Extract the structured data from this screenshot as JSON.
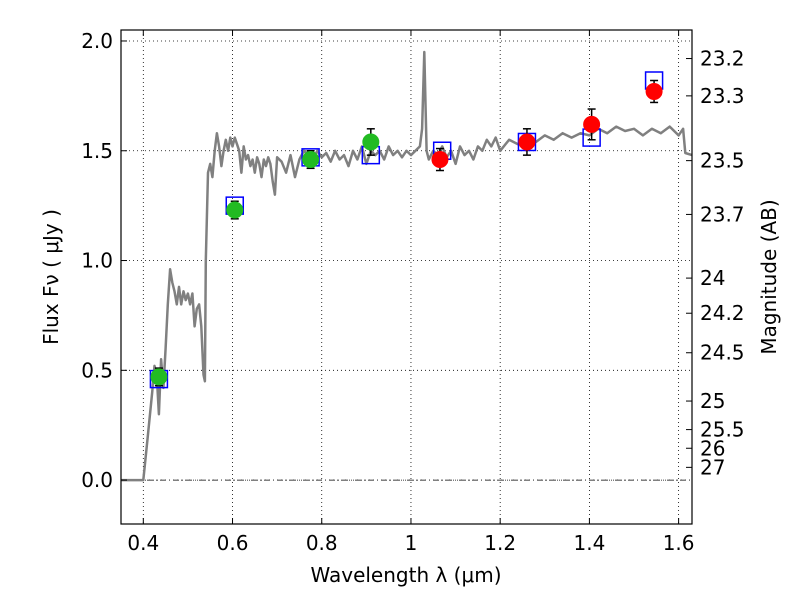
{
  "chart_data": {
    "type": "scatter",
    "xlabel": "Wavelength  λ (μm)",
    "ylabel": "Flux  Fν  ( μJy )",
    "ylabel_right": "Magnitude (AB)",
    "xlim": [
      0.35,
      1.63
    ],
    "ylim": [
      -0.2,
      2.05
    ],
    "x_ticks": [
      0.4,
      0.6,
      0.8,
      1.0,
      1.2,
      1.4,
      1.6
    ],
    "x_tick_labels": [
      "0.4",
      "0.6",
      "0.8",
      "1",
      "1.2",
      "1.4",
      "1.6"
    ],
    "y_ticks": [
      0.0,
      0.5,
      1.0,
      1.5,
      2.0
    ],
    "y_tick_labels": [
      "0.0",
      "0.5",
      "1.0",
      "1.5",
      "2.0"
    ],
    "right_ticks": [
      {
        "label": "23.2",
        "flux": 1.92
      },
      {
        "label": "23.3",
        "flux": 1.75
      },
      {
        "label": "23.5",
        "flux": 1.455
      },
      {
        "label": "23.7",
        "flux": 1.21
      },
      {
        "label": "24",
        "flux": 0.92
      },
      {
        "label": "24.2",
        "flux": 0.76
      },
      {
        "label": "24.5",
        "flux": 0.58
      },
      {
        "label": "25",
        "flux": 0.36
      },
      {
        "label": "25.5",
        "flux": 0.23
      },
      {
        "label": "26",
        "flux": 0.145
      },
      {
        "label": "27",
        "flux": 0.058
      }
    ],
    "grid": true,
    "zero_line": 0.0,
    "colors": {
      "model": "#808080",
      "box": "#0000ff",
      "optical_points": "#22bb22",
      "nir_points": "#ff0000",
      "errorbar": "#000000"
    },
    "series": [
      {
        "style": "line",
        "points": [
          [
            0.35,
            0.0
          ],
          [
            0.4,
            0.0
          ],
          [
            0.41,
            0.2
          ],
          [
            0.42,
            0.4
          ],
          [
            0.425,
            0.52
          ],
          [
            0.43,
            0.48
          ],
          [
            0.435,
            0.3
          ],
          [
            0.44,
            0.55
          ],
          [
            0.445,
            0.42
          ],
          [
            0.45,
            0.6
          ],
          [
            0.455,
            0.8
          ],
          [
            0.46,
            0.96
          ],
          [
            0.465,
            0.9
          ],
          [
            0.47,
            0.86
          ],
          [
            0.475,
            0.8
          ],
          [
            0.48,
            0.88
          ],
          [
            0.485,
            0.8
          ],
          [
            0.49,
            0.86
          ],
          [
            0.495,
            0.82
          ],
          [
            0.5,
            0.85
          ],
          [
            0.505,
            0.8
          ],
          [
            0.51,
            0.85
          ],
          [
            0.515,
            0.7
          ],
          [
            0.52,
            0.78
          ],
          [
            0.525,
            0.8
          ],
          [
            0.53,
            0.7
          ],
          [
            0.535,
            0.48
          ],
          [
            0.538,
            0.45
          ],
          [
            0.54,
            1.0
          ],
          [
            0.545,
            1.4
          ],
          [
            0.55,
            1.44
          ],
          [
            0.555,
            1.38
          ],
          [
            0.56,
            1.5
          ],
          [
            0.565,
            1.58
          ],
          [
            0.57,
            1.52
          ],
          [
            0.575,
            1.43
          ],
          [
            0.58,
            1.5
          ],
          [
            0.585,
            1.55
          ],
          [
            0.59,
            1.5
          ],
          [
            0.595,
            1.56
          ],
          [
            0.6,
            1.52
          ],
          [
            0.605,
            1.56
          ],
          [
            0.61,
            1.53
          ],
          [
            0.615,
            1.5
          ],
          [
            0.62,
            1.4
          ],
          [
            0.625,
            1.52
          ],
          [
            0.63,
            1.46
          ],
          [
            0.635,
            1.48
          ],
          [
            0.64,
            1.43
          ],
          [
            0.645,
            1.46
          ],
          [
            0.65,
            1.4
          ],
          [
            0.655,
            1.47
          ],
          [
            0.66,
            1.44
          ],
          [
            0.665,
            1.38
          ],
          [
            0.67,
            1.46
          ],
          [
            0.675,
            1.43
          ],
          [
            0.68,
            1.47
          ],
          [
            0.685,
            1.44
          ],
          [
            0.69,
            1.36
          ],
          [
            0.695,
            1.3
          ],
          [
            0.7,
            1.47
          ],
          [
            0.71,
            1.45
          ],
          [
            0.72,
            1.4
          ],
          [
            0.73,
            1.48
          ],
          [
            0.74,
            1.38
          ],
          [
            0.75,
            1.46
          ],
          [
            0.76,
            1.5
          ],
          [
            0.77,
            1.48
          ],
          [
            0.78,
            1.46
          ],
          [
            0.79,
            1.5
          ],
          [
            0.8,
            1.47
          ],
          [
            0.81,
            1.49
          ],
          [
            0.82,
            1.45
          ],
          [
            0.83,
            1.5
          ],
          [
            0.84,
            1.46
          ],
          [
            0.85,
            1.48
          ],
          [
            0.86,
            1.43
          ],
          [
            0.87,
            1.5
          ],
          [
            0.88,
            1.46
          ],
          [
            0.89,
            1.52
          ],
          [
            0.9,
            1.44
          ],
          [
            0.91,
            1.5
          ],
          [
            0.92,
            1.48
          ],
          [
            0.93,
            1.5
          ],
          [
            0.94,
            1.46
          ],
          [
            0.95,
            1.52
          ],
          [
            0.96,
            1.48
          ],
          [
            0.97,
            1.5
          ],
          [
            0.98,
            1.47
          ],
          [
            0.99,
            1.5
          ],
          [
            1.0,
            1.48
          ],
          [
            1.01,
            1.5
          ],
          [
            1.02,
            1.52
          ],
          [
            1.025,
            1.6
          ],
          [
            1.03,
            1.95
          ],
          [
            1.035,
            1.5
          ],
          [
            1.04,
            1.46
          ],
          [
            1.05,
            1.5
          ],
          [
            1.06,
            1.48
          ],
          [
            1.07,
            1.52
          ],
          [
            1.08,
            1.47
          ],
          [
            1.09,
            1.5
          ],
          [
            1.1,
            1.44
          ],
          [
            1.11,
            1.52
          ],
          [
            1.12,
            1.48
          ],
          [
            1.13,
            1.5
          ],
          [
            1.14,
            1.46
          ],
          [
            1.15,
            1.52
          ],
          [
            1.16,
            1.5
          ],
          [
            1.17,
            1.55
          ],
          [
            1.18,
            1.52
          ],
          [
            1.19,
            1.56
          ],
          [
            1.2,
            1.5
          ],
          [
            1.22,
            1.55
          ],
          [
            1.24,
            1.53
          ],
          [
            1.26,
            1.56
          ],
          [
            1.28,
            1.54
          ],
          [
            1.3,
            1.57
          ],
          [
            1.32,
            1.55
          ],
          [
            1.34,
            1.58
          ],
          [
            1.36,
            1.56
          ],
          [
            1.38,
            1.58
          ],
          [
            1.4,
            1.57
          ],
          [
            1.42,
            1.6
          ],
          [
            1.44,
            1.58
          ],
          [
            1.46,
            1.61
          ],
          [
            1.48,
            1.59
          ],
          [
            1.5,
            1.6
          ],
          [
            1.52,
            1.57
          ],
          [
            1.54,
            1.6
          ],
          [
            1.56,
            1.58
          ],
          [
            1.58,
            1.61
          ],
          [
            1.6,
            1.57
          ],
          [
            1.61,
            1.6
          ],
          [
            1.615,
            1.49
          ],
          [
            1.63,
            1.48
          ]
        ]
      },
      {
        "style": "squares",
        "points": [
          [
            0.435,
            0.46
          ],
          [
            0.605,
            1.25
          ],
          [
            0.775,
            1.47
          ],
          [
            0.91,
            1.48
          ],
          [
            1.07,
            1.5
          ],
          [
            1.26,
            1.54
          ],
          [
            1.405,
            1.56
          ],
          [
            1.545,
            1.82
          ]
        ]
      },
      {
        "style": "points",
        "points": [
          {
            "x": 0.435,
            "y": 0.47,
            "err": 0.04
          },
          {
            "x": 0.605,
            "y": 1.23,
            "err": 0.04
          },
          {
            "x": 0.775,
            "y": 1.46,
            "err": 0.04
          },
          {
            "x": 0.91,
            "y": 1.54,
            "err": 0.06
          }
        ]
      },
      {
        "style": "points",
        "points": [
          {
            "x": 1.065,
            "y": 1.46,
            "err": 0.05
          },
          {
            "x": 1.26,
            "y": 1.54,
            "err": 0.06
          },
          {
            "x": 1.405,
            "y": 1.62,
            "err": 0.07
          },
          {
            "x": 1.545,
            "y": 1.77,
            "err": 0.05
          }
        ]
      }
    ]
  }
}
